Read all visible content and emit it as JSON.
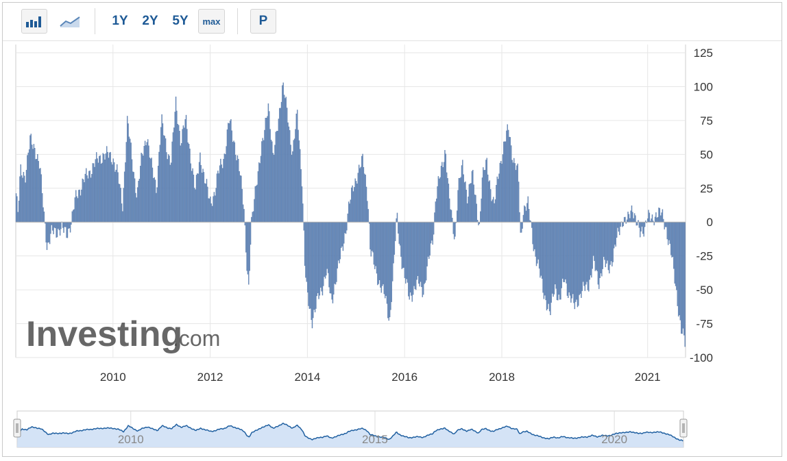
{
  "toolbar": {
    "bar_icon": "bar-chart-icon",
    "line_icon": "line-chart-icon",
    "range_1y": "1Y",
    "range_2y": "2Y",
    "range_5y": "5Y",
    "range_max": "max",
    "p_label": "P"
  },
  "watermark": {
    "brand": "Investing",
    "suffix": ".com"
  },
  "colors": {
    "bar": "#6b8fbf",
    "bar_stroke": "#4a6c9e",
    "navigator_line": "#1f5fa0",
    "navigator_fill": "#cfe0f5",
    "grid": "#e6e6e6"
  },
  "chart_data": {
    "type": "bar",
    "title": "",
    "xlabel": "",
    "ylabel": "",
    "ylim": [
      -100,
      125
    ],
    "y_ticks": [
      "125",
      "100",
      "75",
      "50",
      "25",
      "0",
      "-25",
      "-50",
      "-75",
      "-100"
    ],
    "x_ticks": [
      "2010",
      "2012",
      "2014",
      "2016",
      "2018",
      "2021"
    ],
    "x_range": [
      2008.0,
      2021.78
    ],
    "grid": true,
    "series_profile": [
      [
        2008.0,
        25
      ],
      [
        2008.05,
        5
      ],
      [
        2008.1,
        38
      ],
      [
        2008.2,
        35
      ],
      [
        2008.3,
        60
      ],
      [
        2008.4,
        55
      ],
      [
        2008.5,
        40
      ],
      [
        2008.58,
        8
      ],
      [
        2008.65,
        -18
      ],
      [
        2008.75,
        -8
      ],
      [
        2008.9,
        -5
      ],
      [
        2009.05,
        -8
      ],
      [
        2009.15,
        0
      ],
      [
        2009.25,
        20
      ],
      [
        2009.4,
        30
      ],
      [
        2009.6,
        42
      ],
      [
        2009.8,
        50
      ],
      [
        2010.0,
        48
      ],
      [
        2010.1,
        35
      ],
      [
        2010.2,
        12
      ],
      [
        2010.3,
        75
      ],
      [
        2010.4,
        45
      ],
      [
        2010.5,
        20
      ],
      [
        2010.6,
        48
      ],
      [
        2010.7,
        65
      ],
      [
        2010.8,
        40
      ],
      [
        2010.9,
        25
      ],
      [
        2011.0,
        75
      ],
      [
        2011.1,
        55
      ],
      [
        2011.2,
        45
      ],
      [
        2011.3,
        88
      ],
      [
        2011.4,
        60
      ],
      [
        2011.5,
        75
      ],
      [
        2011.6,
        50
      ],
      [
        2011.7,
        22
      ],
      [
        2011.8,
        50
      ],
      [
        2011.9,
        30
      ],
      [
        2012.0,
        15
      ],
      [
        2012.1,
        22
      ],
      [
        2012.2,
        40
      ],
      [
        2012.3,
        50
      ],
      [
        2012.4,
        75
      ],
      [
        2012.5,
        60
      ],
      [
        2012.6,
        40
      ],
      [
        2012.7,
        12
      ],
      [
        2012.75,
        -25
      ],
      [
        2012.8,
        -50
      ],
      [
        2012.85,
        -5
      ],
      [
        2012.95,
        30
      ],
      [
        2013.1,
        60
      ],
      [
        2013.2,
        90
      ],
      [
        2013.3,
        45
      ],
      [
        2013.4,
        75
      ],
      [
        2013.5,
        100
      ],
      [
        2013.6,
        80
      ],
      [
        2013.7,
        50
      ],
      [
        2013.8,
        80
      ],
      [
        2013.9,
        30
      ],
      [
        2013.95,
        -30
      ],
      [
        2014.0,
        -55
      ],
      [
        2014.1,
        -72
      ],
      [
        2014.2,
        -60
      ],
      [
        2014.3,
        -50
      ],
      [
        2014.4,
        -35
      ],
      [
        2014.5,
        -60
      ],
      [
        2014.6,
        -40
      ],
      [
        2014.7,
        -25
      ],
      [
        2014.8,
        -5
      ],
      [
        2014.85,
        10
      ],
      [
        2014.95,
        25
      ],
      [
        2015.05,
        38
      ],
      [
        2015.15,
        45
      ],
      [
        2015.25,
        20
      ],
      [
        2015.3,
        -20
      ],
      [
        2015.4,
        -35
      ],
      [
        2015.5,
        -45
      ],
      [
        2015.6,
        -55
      ],
      [
        2015.7,
        -72
      ],
      [
        2015.78,
        -35
      ],
      [
        2015.85,
        5
      ],
      [
        2015.9,
        -15
      ],
      [
        2016.0,
        -40
      ],
      [
        2016.1,
        -55
      ],
      [
        2016.2,
        -50
      ],
      [
        2016.3,
        -45
      ],
      [
        2016.4,
        -50
      ],
      [
        2016.5,
        -30
      ],
      [
        2016.6,
        -8
      ],
      [
        2016.65,
        20
      ],
      [
        2016.75,
        35
      ],
      [
        2016.85,
        55
      ],
      [
        2016.92,
        20
      ],
      [
        2017.0,
        -5
      ],
      [
        2017.05,
        -12
      ],
      [
        2017.1,
        25
      ],
      [
        2017.2,
        40
      ],
      [
        2017.3,
        20
      ],
      [
        2017.4,
        35
      ],
      [
        2017.5,
        10
      ],
      [
        2017.55,
        -3
      ],
      [
        2017.6,
        30
      ],
      [
        2017.7,
        45
      ],
      [
        2017.8,
        20
      ],
      [
        2017.85,
        10
      ],
      [
        2017.95,
        40
      ],
      [
        2018.05,
        55
      ],
      [
        2018.15,
        70
      ],
      [
        2018.25,
        45
      ],
      [
        2018.35,
        35
      ],
      [
        2018.4,
        -15
      ],
      [
        2018.45,
        10
      ],
      [
        2018.55,
        12
      ],
      [
        2018.62,
        -5
      ],
      [
        2018.7,
        -25
      ],
      [
        2018.8,
        -40
      ],
      [
        2018.9,
        -55
      ],
      [
        2019.0,
        -70
      ],
      [
        2019.1,
        -45
      ],
      [
        2019.2,
        -60
      ],
      [
        2019.3,
        -40
      ],
      [
        2019.4,
        -55
      ],
      [
        2019.5,
        -62
      ],
      [
        2019.6,
        -55
      ],
      [
        2019.7,
        -50
      ],
      [
        2019.8,
        -45
      ],
      [
        2019.9,
        -30
      ],
      [
        2020.0,
        -45
      ],
      [
        2020.1,
        -30
      ],
      [
        2020.2,
        -35
      ],
      [
        2020.3,
        -25
      ],
      [
        2020.4,
        -10
      ],
      [
        2020.5,
        3
      ],
      [
        2020.6,
        0
      ],
      [
        2020.7,
        12
      ],
      [
        2020.75,
        5
      ],
      [
        2020.85,
        -10
      ],
      [
        2020.95,
        -3
      ],
      [
        2021.0,
        5
      ],
      [
        2021.1,
        0
      ],
      [
        2021.2,
        8
      ],
      [
        2021.3,
        5
      ],
      [
        2021.4,
        -5
      ],
      [
        2021.5,
        -25
      ],
      [
        2021.6,
        -50
      ],
      [
        2021.7,
        -80
      ],
      [
        2021.78,
        -90
      ]
    ]
  }
}
